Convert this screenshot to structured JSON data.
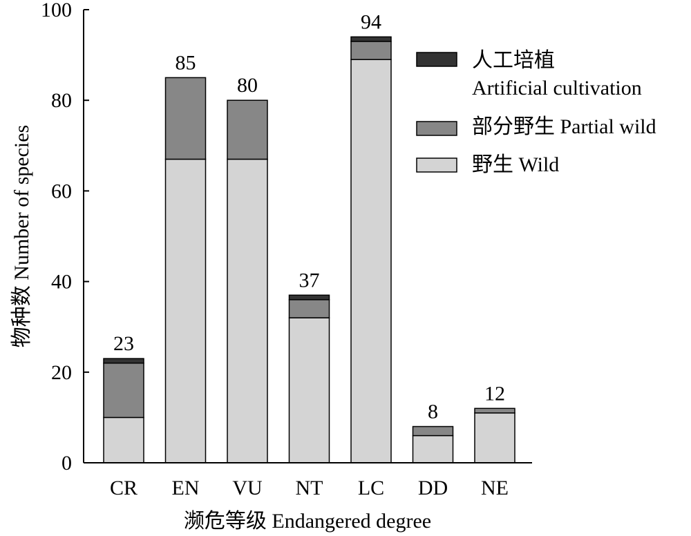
{
  "chart_data": {
    "type": "bar",
    "stacked": true,
    "categories": [
      "CR",
      "EN",
      "VU",
      "NT",
      "LC",
      "DD",
      "NE"
    ],
    "series": [
      {
        "name": "野生 Wild",
        "values": [
          10,
          67,
          67,
          32,
          89,
          6,
          11
        ],
        "color": "#d4d4d4"
      },
      {
        "name": "部分野生 Partial wild",
        "values": [
          12,
          18,
          13,
          4,
          4,
          2,
          1
        ],
        "color": "#878787"
      },
      {
        "name": "人工培植 Artificial cultivation",
        "name_lines": [
          "人工培植",
          "Artificial cultivation"
        ],
        "values": [
          1,
          0,
          0,
          1,
          1,
          0,
          0
        ],
        "color": "#333333"
      }
    ],
    "totals": [
      23,
      85,
      80,
      37,
      94,
      8,
      12
    ],
    "xlabel": "濒危等级 Endangered degree",
    "ylabel": "物种数 Number of species",
    "ylim": [
      0,
      100
    ],
    "yticks": [
      0,
      20,
      40,
      60,
      80,
      100
    ],
    "grid": false,
    "legend_position": "top-right",
    "legend_order": [
      2,
      1,
      0
    ]
  }
}
